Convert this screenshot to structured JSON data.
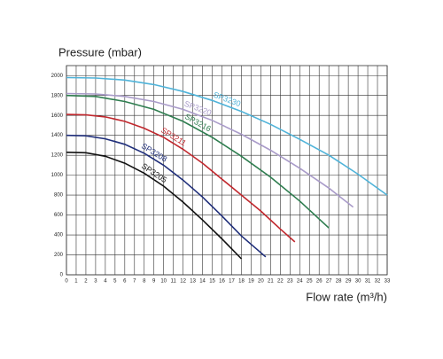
{
  "chart_data": {
    "type": "line",
    "y_label": "Pressure (mbar)",
    "x_label": "Flow rate (m³/h)",
    "xlim": [
      0,
      33
    ],
    "ylim": [
      0,
      2100
    ],
    "xticks": [
      0,
      1,
      2,
      3,
      4,
      5,
      6,
      7,
      8,
      9,
      10,
      11,
      12,
      13,
      14,
      15,
      16,
      17,
      18,
      19,
      20,
      21,
      22,
      23,
      24,
      25,
      26,
      27,
      28,
      29,
      30,
      31,
      32,
      33
    ],
    "yticks": [
      0,
      200,
      400,
      600,
      800,
      1000,
      1200,
      1400,
      1600,
      1800,
      2000
    ],
    "grid": true,
    "series": [
      {
        "name": "SP3205",
        "color": "#111111",
        "x": [
          0,
          2,
          4,
          6,
          8,
          10,
          12,
          14,
          16,
          18
        ],
        "values": [
          1230,
          1225,
          1190,
          1120,
          1020,
          890,
          730,
          550,
          360,
          160
        ]
      },
      {
        "name": "SP3208",
        "color": "#1f2e7a",
        "x": [
          0,
          2,
          4,
          6,
          8,
          10,
          12,
          14,
          16,
          18,
          20.5
        ],
        "values": [
          1400,
          1395,
          1365,
          1310,
          1220,
          1100,
          950,
          780,
          590,
          390,
          180
        ]
      },
      {
        "name": "SP3211",
        "color": "#c0272d",
        "x": [
          0,
          2,
          4,
          6,
          8,
          10,
          12,
          14,
          16,
          18,
          20,
          22,
          23.5
        ],
        "values": [
          1610,
          1605,
          1585,
          1540,
          1470,
          1380,
          1260,
          1120,
          960,
          800,
          640,
          460,
          330
        ]
      },
      {
        "name": "SP3216",
        "color": "#2e7d4f",
        "x": [
          0,
          3,
          6,
          9,
          12,
          15,
          18,
          21,
          24,
          27
        ],
        "values": [
          1800,
          1790,
          1740,
          1660,
          1540,
          1380,
          1190,
          980,
          740,
          470
        ]
      },
      {
        "name": "SP3220",
        "color": "#a99bc9",
        "x": [
          0,
          3,
          6,
          9,
          12,
          15,
          18,
          21,
          24,
          27,
          29.5
        ],
        "values": [
          1820,
          1815,
          1790,
          1740,
          1660,
          1550,
          1410,
          1250,
          1070,
          870,
          680
        ]
      },
      {
        "name": "SP3230",
        "color": "#4fb3d9",
        "x": [
          0,
          3,
          6,
          9,
          12,
          15,
          18,
          21,
          24,
          27,
          30,
          33
        ],
        "values": [
          1980,
          1975,
          1955,
          1910,
          1840,
          1750,
          1640,
          1510,
          1360,
          1200,
          1010,
          800
        ]
      }
    ]
  }
}
